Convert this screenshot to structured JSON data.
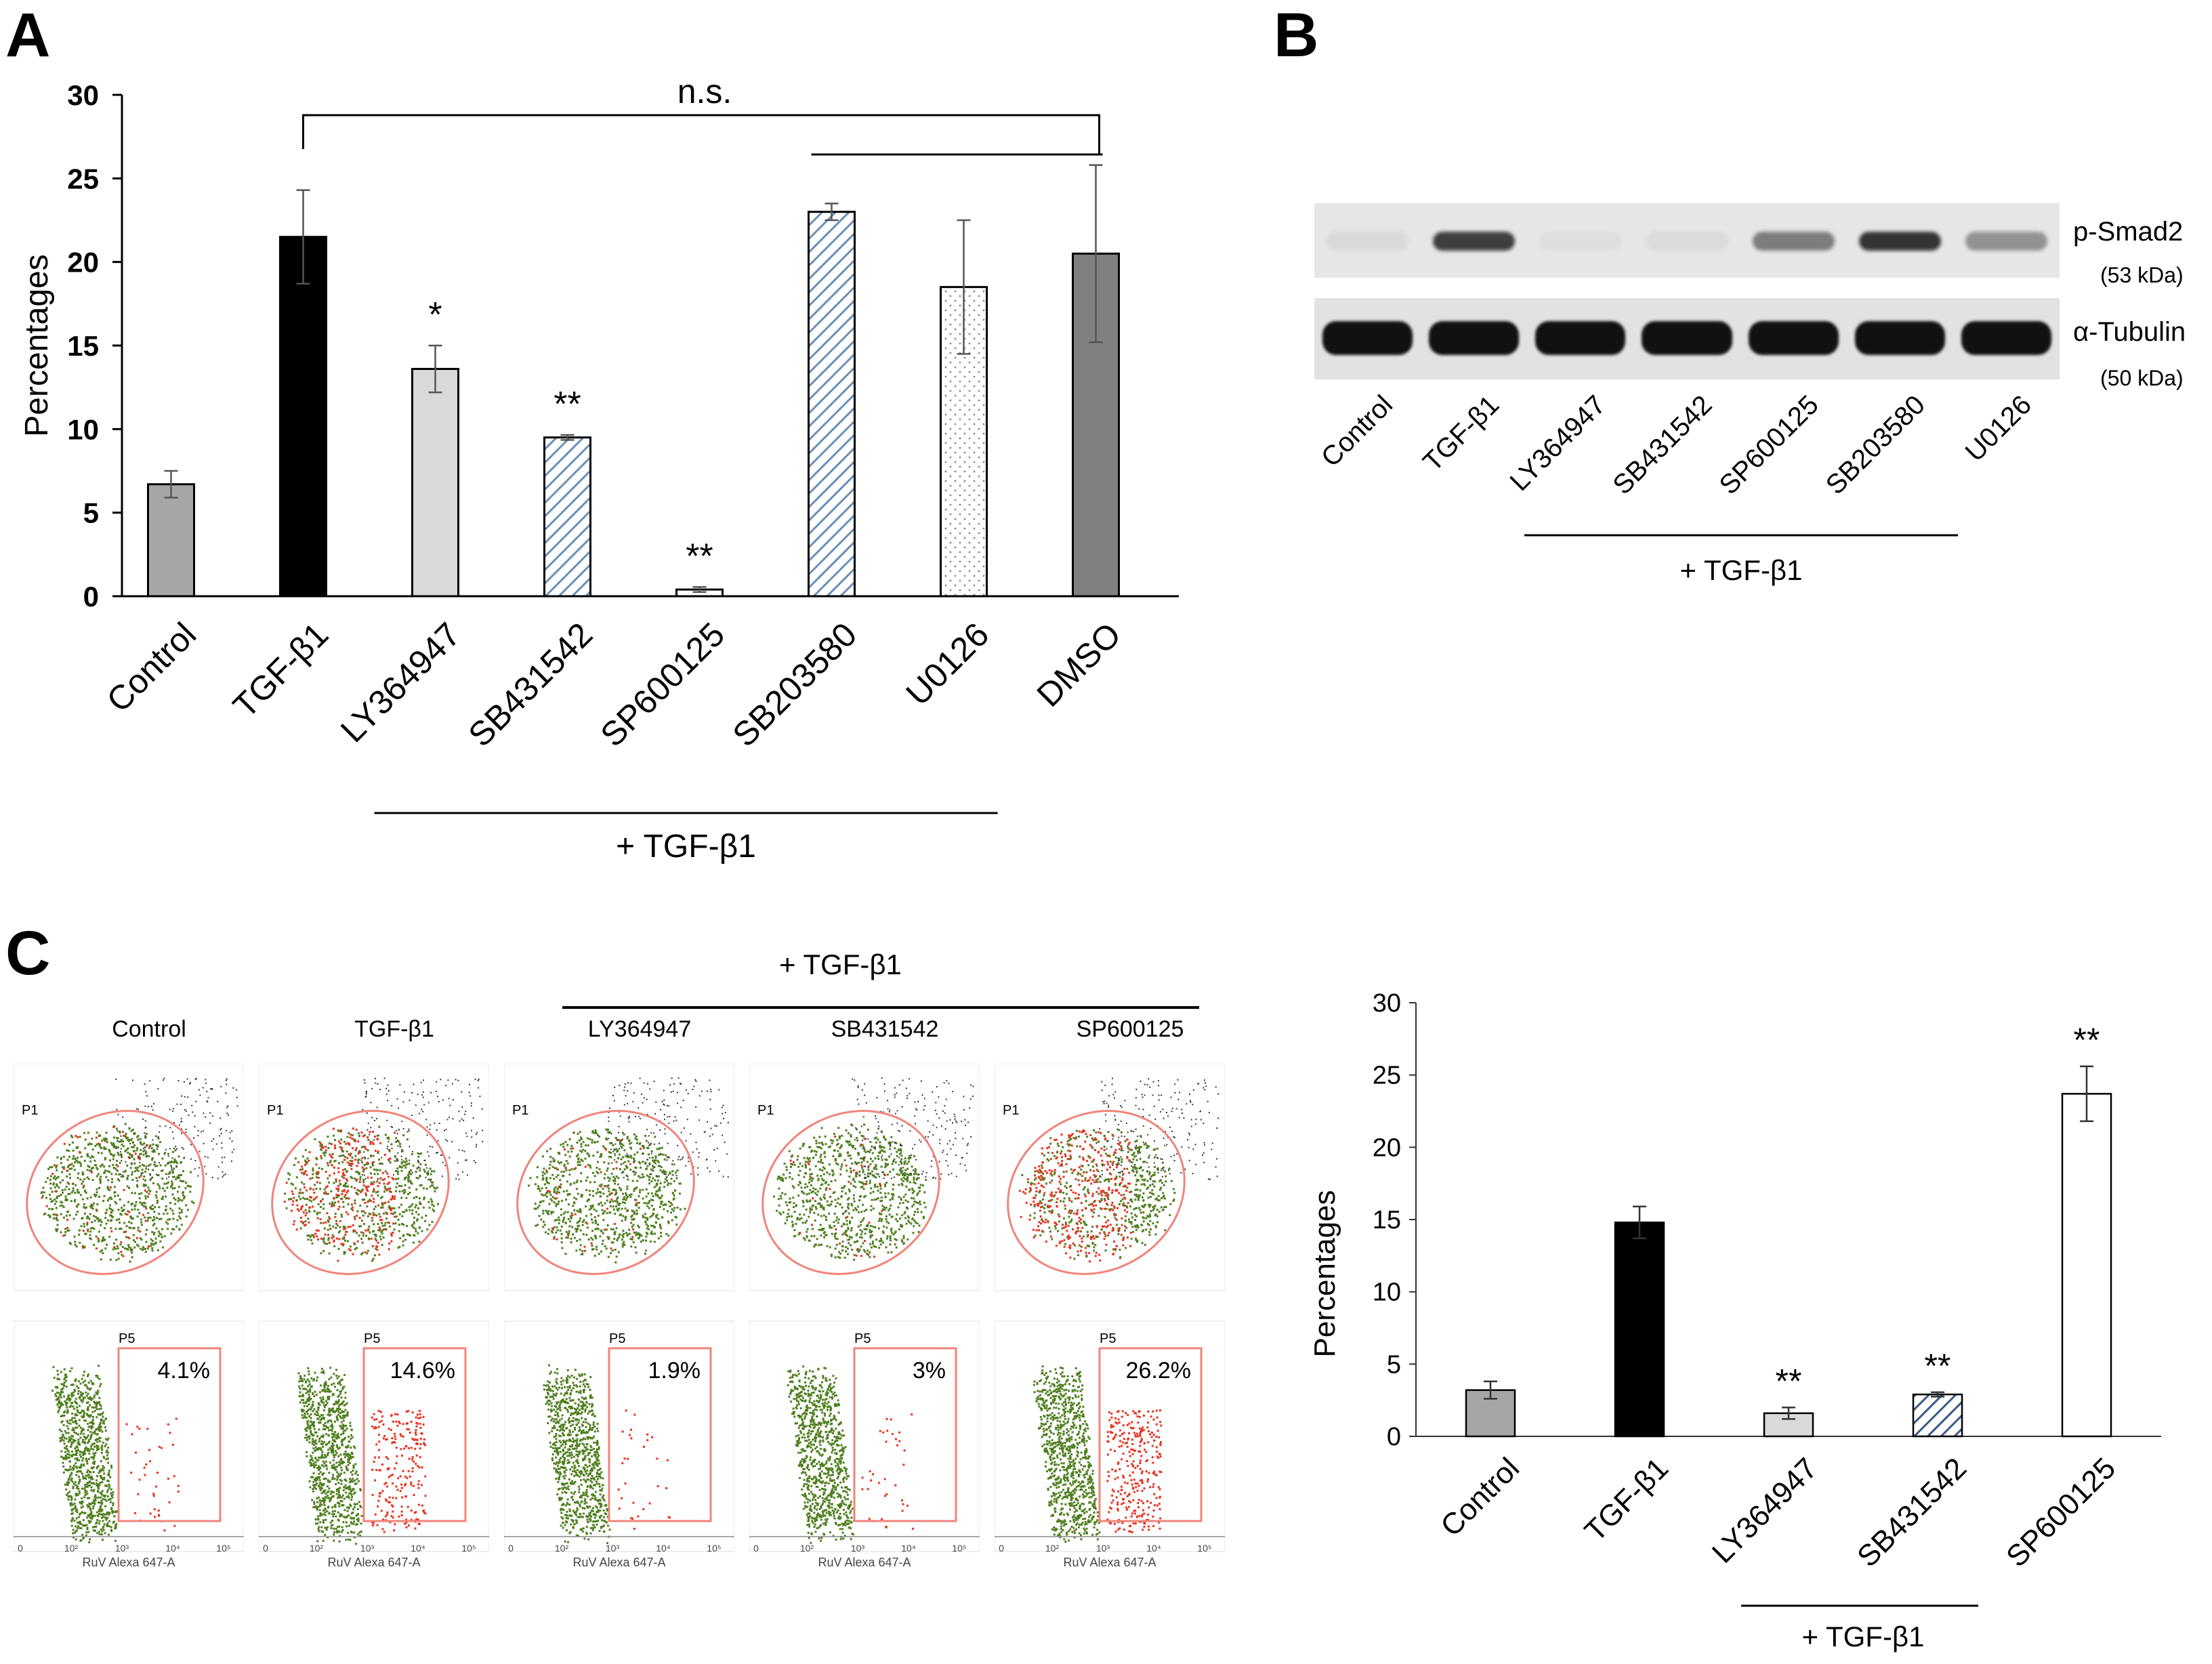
{
  "panels": {
    "a": "A",
    "b": "B",
    "c": "C"
  },
  "colors": {
    "control": "#a6a6a6",
    "tgf": "#000000",
    "ly": "#d9d9d9",
    "sb431": "#c9d9ea",
    "sp600": "#ffffff",
    "sb203": "#c9d9ea",
    "u0126": "#ffffff",
    "dmso": "#808080",
    "psmad_band": "#2b2b2b",
    "tubulin_band": "#111111",
    "gate": "#f0847a",
    "cells_green": "#4f7f1f",
    "cells_red": "#e8311e"
  },
  "chart_data": [
    {
      "id": "A",
      "type": "bar",
      "categories": [
        "Control",
        "TGF-β1",
        "LY364947",
        "SB431542",
        "SP600125",
        "SB203580",
        "U0126",
        "DMSO"
      ],
      "values": [
        6.7,
        21.5,
        13.6,
        9.5,
        0.4,
        23.0,
        18.5,
        20.5
      ],
      "errors": [
        0.8,
        2.8,
        1.4,
        0.15,
        0.15,
        0.5,
        4.0,
        5.3
      ],
      "significance": [
        "",
        "",
        "*",
        "**",
        "**",
        "",
        "",
        ""
      ],
      "fills": [
        "solid",
        "solid",
        "solid",
        "hatch",
        "solid",
        "hatch",
        "dots",
        "solid"
      ],
      "ylabel": "Percentages",
      "ylim": [
        0,
        30
      ],
      "yticks": [
        "0",
        "5",
        "10",
        "15",
        "20",
        "25",
        "30"
      ],
      "group_label": "+ TGF-β1",
      "bracket_label": "n.s."
    },
    {
      "id": "C",
      "type": "bar",
      "categories": [
        "Control",
        "TGF-β1",
        "LY364947",
        "SB431542",
        "SP600125"
      ],
      "values": [
        3.2,
        14.8,
        1.6,
        2.9,
        23.7
      ],
      "errors": [
        0.6,
        1.1,
        0.4,
        0.15,
        1.9
      ],
      "significance": [
        "",
        "",
        "**",
        "**",
        "**"
      ],
      "fills": [
        "solid",
        "solid",
        "solid",
        "hatch",
        "solid"
      ],
      "ylabel": "Percentages",
      "ylim": [
        0,
        30
      ],
      "yticks": [
        "0",
        "5",
        "10",
        "15",
        "20",
        "25",
        "30"
      ],
      "group_label": "+ TGF-β1"
    }
  ],
  "blot": {
    "lanes": [
      "Control",
      "TGF-β1",
      "LY364947",
      "SB431542",
      "SP600125",
      "SB203580",
      "U0126"
    ],
    "psmad_intensity": [
      0.06,
      0.8,
      0.04,
      0.05,
      0.5,
      0.85,
      0.4
    ],
    "tubulin_intensity": [
      1,
      1,
      1,
      1,
      1,
      1,
      1
    ],
    "row1_label": "p-Smad2",
    "row1_kda": "(53 kDa)",
    "row2_label": "α-Tubulin",
    "row2_kda": "(50 kDa)",
    "group_label": "+ TGF-β1"
  },
  "flow": {
    "header_label": "+ TGF-β1",
    "samples": [
      {
        "title": "Control",
        "percent": "4.1%",
        "red_fraction": 0.08
      },
      {
        "title": "TGF-β1",
        "percent": "14.6%",
        "red_fraction": 0.45
      },
      {
        "title": "LY364947",
        "percent": "1.9%",
        "red_fraction": 0.06
      },
      {
        "title": "SB431542",
        "percent": "3%",
        "red_fraction": 0.07
      },
      {
        "title": "SP600125",
        "percent": "26.2%",
        "red_fraction": 0.6
      }
    ],
    "gate_top": "P1",
    "gate_bottom": "P5",
    "axis_label": "RuV Alexa 647-A",
    "tick_labels": [
      "0",
      "10²",
      "10³",
      "10⁴",
      "10⁵"
    ]
  }
}
